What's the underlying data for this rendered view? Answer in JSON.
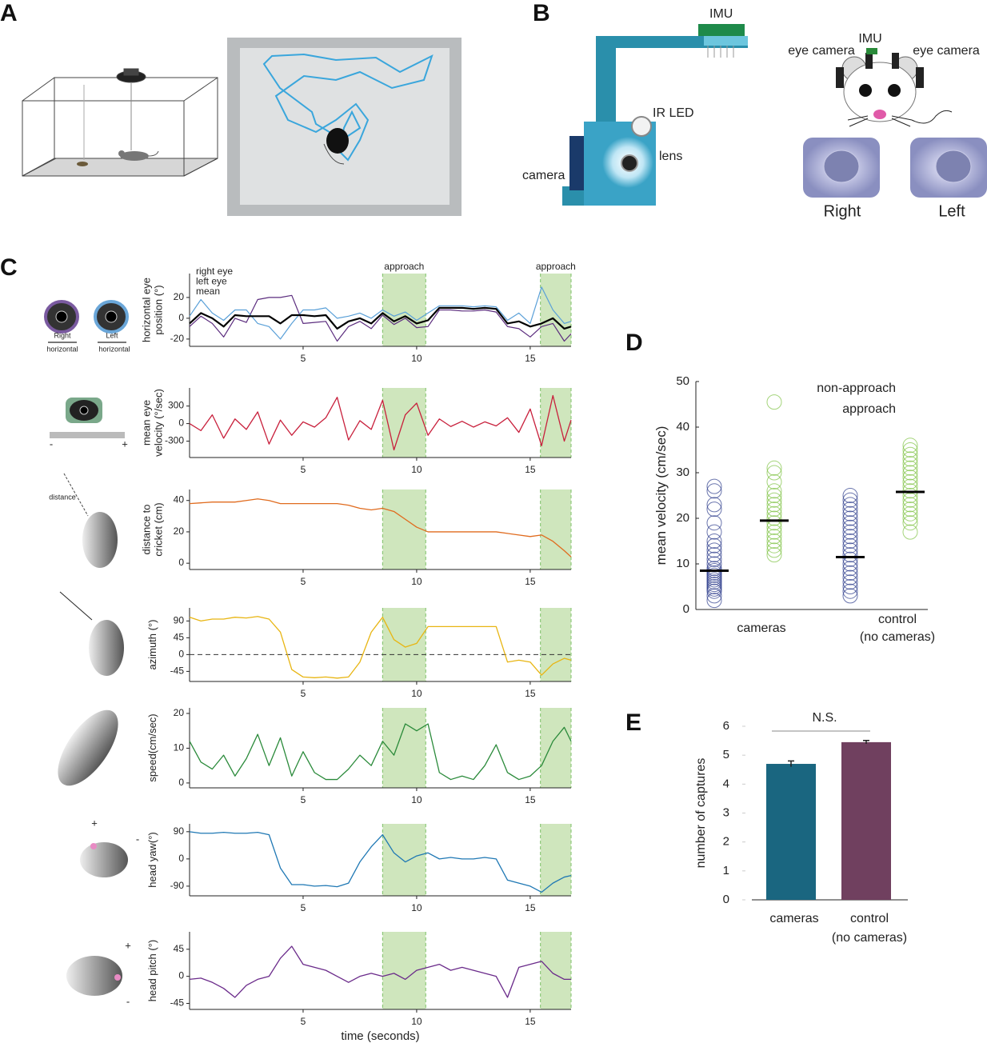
{
  "panel_labels": [
    "A",
    "B",
    "C",
    "D",
    "E"
  ],
  "panel_b": {
    "imu": "IMU",
    "ir_led": "IR LED",
    "lens": "lens",
    "camera": "camera",
    "eye_camera": "eye camera",
    "right": "Right",
    "left": "Left"
  },
  "panel_c_icons": {
    "right": "Right",
    "left": "Left",
    "horizontal": "horizontal",
    "plus": "+",
    "minus": "-",
    "distance": "distance"
  },
  "chart_data": [
    {
      "type": "line",
      "ylabel": "horizontal eye\nposition (°)",
      "x": [
        0,
        0.5,
        1,
        1.5,
        2,
        2.5,
        3,
        3.5,
        4,
        4.5,
        5,
        5.5,
        6,
        6.5,
        7,
        7.5,
        8,
        8.5,
        9,
        9.5,
        10,
        10.5,
        11,
        11.5,
        12,
        12.5,
        13,
        13.5,
        14,
        14.5,
        15,
        15.5,
        16,
        16.5,
        16.8
      ],
      "xlim": [
        0,
        16.8
      ],
      "xticks": [
        5,
        10,
        15
      ],
      "ylim": [
        -27,
        43
      ],
      "yticks": [
        20,
        0,
        -20
      ],
      "regions": [
        {
          "start": 8.5,
          "end": 10.4,
          "label": "approach"
        },
        {
          "start": 15.45,
          "end": 16.8,
          "label": "approach"
        }
      ],
      "series": [
        {
          "name": "right eye",
          "color": "#5b2c7e",
          "values": [
            -8,
            2,
            -5,
            -18,
            0,
            -4,
            18,
            20,
            20,
            22,
            -5,
            -4,
            -3,
            -22,
            -8,
            -3,
            -10,
            3,
            -6,
            0,
            -9,
            -8,
            8,
            8,
            7,
            7,
            8,
            6,
            -8,
            -10,
            -18,
            -8,
            -5,
            -22,
            -15
          ]
        },
        {
          "name": "left eye",
          "color": "#5aa0d8",
          "values": [
            2,
            18,
            5,
            -2,
            8,
            8,
            -5,
            -8,
            -20,
            -5,
            8,
            8,
            10,
            0,
            2,
            5,
            0,
            8,
            2,
            6,
            -2,
            5,
            12,
            12,
            12,
            11,
            12,
            11,
            -2,
            5,
            -5,
            30,
            8,
            -5,
            -3
          ]
        },
        {
          "name": "mean",
          "color": "#000000",
          "values": [
            -5,
            5,
            0,
            -8,
            3,
            2,
            2,
            2,
            -5,
            3,
            3,
            2,
            3,
            -10,
            -3,
            0,
            -5,
            5,
            -3,
            2,
            -5,
            -2,
            10,
            10,
            10,
            9,
            10,
            9,
            -5,
            -3,
            -8,
            -5,
            0,
            -10,
            -8
          ]
        }
      ]
    },
    {
      "type": "line",
      "ylabel": "mean eye\nvelocity  (°/sec)",
      "x": [
        0,
        0.5,
        1,
        1.5,
        2,
        2.5,
        3,
        3.5,
        4,
        4.5,
        5,
        5.5,
        6,
        6.5,
        7,
        7.5,
        8,
        8.5,
        9,
        9.5,
        10,
        10.5,
        11,
        11.5,
        12,
        12.5,
        13,
        13.5,
        14,
        14.5,
        15,
        15.5,
        16,
        16.5,
        16.8
      ],
      "xlim": [
        0,
        16.8
      ],
      "xticks": [
        5,
        10,
        15
      ],
      "ylim": [
        -580,
        610
      ],
      "yticks": [
        300,
        0,
        -300
      ],
      "regions": [
        {
          "start": 8.5,
          "end": 10.4
        },
        {
          "start": 15.45,
          "end": 16.8
        }
      ],
      "color": "#c8203c",
      "values": [
        0,
        -120,
        150,
        -250,
        80,
        -100,
        200,
        -350,
        60,
        -200,
        30,
        -60,
        100,
        450,
        -280,
        50,
        -100,
        400,
        -450,
        150,
        350,
        -200,
        80,
        -50,
        40,
        -60,
        30,
        -40,
        100,
        -150,
        250,
        -380,
        480,
        -300,
        60
      ]
    },
    {
      "type": "line",
      "ylabel": "distance to\ncricket (cm)",
      "x": [
        0,
        0.5,
        1,
        1.5,
        2,
        2.5,
        3,
        3.5,
        4,
        4.5,
        5,
        5.5,
        6,
        6.5,
        7,
        7.5,
        8,
        8.5,
        9,
        9.5,
        10,
        10.5,
        11,
        11.5,
        12,
        12.5,
        13,
        13.5,
        14,
        14.5,
        15,
        15.5,
        16,
        16.5,
        16.8
      ],
      "xlim": [
        0,
        16.8
      ],
      "xticks": [
        5,
        10,
        15
      ],
      "ylim": [
        -4,
        47
      ],
      "yticks": [
        40,
        20,
        0
      ],
      "regions": [
        {
          "start": 8.5,
          "end": 10.4
        },
        {
          "start": 15.45,
          "end": 16.8
        }
      ],
      "color": "#e06b1e",
      "values": [
        38,
        38.5,
        39,
        39,
        39,
        40,
        41,
        40,
        38,
        38,
        38,
        38,
        38,
        38,
        37,
        35,
        34,
        35,
        33,
        28,
        23,
        20,
        20,
        20,
        20,
        20,
        20,
        20,
        19,
        18,
        17,
        18,
        14,
        8,
        4
      ]
    },
    {
      "type": "line",
      "ylabel": "azimuth (°)",
      "x": [
        0,
        0.5,
        1,
        1.5,
        2,
        2.5,
        3,
        3.5,
        4,
        4.5,
        5,
        5.5,
        6,
        6.5,
        7,
        7.5,
        8,
        8.5,
        9,
        9.5,
        10,
        10.5,
        11,
        11.5,
        12,
        12.5,
        13,
        13.5,
        14,
        14.5,
        15,
        15.5,
        16,
        16.5,
        16.8
      ],
      "xlim": [
        0,
        16.8
      ],
      "xticks": [
        5,
        10,
        15
      ],
      "ylim": [
        -72,
        125
      ],
      "yticks": [
        90,
        45,
        0,
        -45
      ],
      "hline": 0,
      "regions": [
        {
          "start": 8.5,
          "end": 10.4
        },
        {
          "start": 15.45,
          "end": 16.8
        }
      ],
      "color": "#e8b512",
      "values": [
        100,
        90,
        95,
        95,
        100,
        98,
        102,
        95,
        60,
        -40,
        -60,
        -62,
        -60,
        -63,
        -60,
        -20,
        60,
        100,
        40,
        20,
        30,
        75,
        75,
        75,
        75,
        75,
        75,
        75,
        -20,
        -15,
        -20,
        -55,
        -25,
        -10,
        -15
      ]
    },
    {
      "type": "line",
      "ylabel": "speed(cm/sec)",
      "x": [
        0,
        0.5,
        1,
        1.5,
        2,
        2.5,
        3,
        3.5,
        4,
        4.5,
        5,
        5.5,
        6,
        6.5,
        7,
        7.5,
        8,
        8.5,
        9,
        9.5,
        10,
        10.5,
        11,
        11.5,
        12,
        12.5,
        13,
        13.5,
        14,
        14.5,
        15,
        15.5,
        16,
        16.5,
        16.8
      ],
      "xlim": [
        0,
        16.8
      ],
      "xticks": [
        5,
        10,
        15
      ],
      "ylim": [
        -1.4,
        21.6
      ],
      "yticks": [
        20,
        10,
        0
      ],
      "regions": [
        {
          "start": 8.5,
          "end": 10.4
        },
        {
          "start": 15.45,
          "end": 16.8
        }
      ],
      "color": "#2a8a3a",
      "values": [
        12,
        6,
        4,
        8,
        2,
        7,
        14,
        5,
        13,
        2,
        9,
        3,
        1,
        1,
        4,
        8,
        5,
        12,
        8,
        17,
        15,
        17,
        3,
        1,
        2,
        1,
        5,
        11,
        3,
        1,
        2,
        5,
        12,
        16,
        12
      ]
    },
    {
      "type": "line",
      "ylabel": "head yaw(°)",
      "x": [
        0,
        0.5,
        1,
        1.5,
        2,
        2.5,
        3,
        3.5,
        4,
        4.5,
        5,
        5.5,
        6,
        6.5,
        7,
        7.5,
        8,
        8.5,
        9,
        9.5,
        10,
        10.5,
        11,
        11.5,
        12,
        12.5,
        13,
        13.5,
        14,
        14.5,
        15,
        15.5,
        16,
        16.5,
        16.8
      ],
      "xlim": [
        0,
        16.8
      ],
      "xticks": [
        5,
        10,
        15
      ],
      "ylim": [
        -122,
        116
      ],
      "yticks": [
        90,
        0,
        -90
      ],
      "regions": [
        {
          "start": 8.5,
          "end": 10.4
        },
        {
          "start": 15.45,
          "end": 16.8
        }
      ],
      "color": "#1f78b4",
      "values": [
        90,
        85,
        85,
        88,
        85,
        85,
        88,
        80,
        -30,
        -85,
        -85,
        -90,
        -88,
        -92,
        -80,
        -10,
        40,
        80,
        20,
        -10,
        10,
        20,
        0,
        5,
        0,
        0,
        5,
        0,
        -70,
        -80,
        -90,
        -110,
        -80,
        -60,
        -55
      ]
    },
    {
      "type": "line",
      "ylabel": "head pitch (°)",
      "xlabel": "time (seconds)",
      "x": [
        0,
        0.5,
        1,
        1.5,
        2,
        2.5,
        3,
        3.5,
        4,
        4.5,
        5,
        5.5,
        6,
        6.5,
        7,
        7.5,
        8,
        8.5,
        9,
        9.5,
        10,
        10.5,
        11,
        11.5,
        12,
        12.5,
        13,
        13.5,
        14,
        14.5,
        15,
        15.5,
        16,
        16.5,
        16.8
      ],
      "xlim": [
        0,
        16.8
      ],
      "xticks": [
        5,
        10,
        15
      ],
      "ylim": [
        -55,
        74
      ],
      "yticks": [
        45,
        0,
        -45
      ],
      "regions": [
        {
          "start": 8.5,
          "end": 10.4
        },
        {
          "start": 15.45,
          "end": 16.8
        }
      ],
      "color": "#6a2a8a",
      "values": [
        -5,
        -3,
        -10,
        -20,
        -35,
        -15,
        -5,
        0,
        30,
        50,
        20,
        15,
        10,
        0,
        -10,
        0,
        5,
        0,
        5,
        -5,
        10,
        15,
        20,
        10,
        15,
        10,
        5,
        0,
        -35,
        15,
        20,
        25,
        5,
        -5,
        -5
      ]
    },
    {
      "type": "strip",
      "ylabel": "mean velocity (cm/sec)",
      "categories": [
        "cameras",
        "control\n(no cameras)"
      ],
      "ylim": [
        0,
        50
      ],
      "yticks": [
        0,
        10,
        20,
        30,
        40,
        50
      ],
      "series": [
        {
          "name": "non-approach",
          "color": "#2b3a8a",
          "values": [
            [
              2,
              3,
              4,
              4.5,
              5,
              5.5,
              6,
              6.5,
              7,
              7.5,
              8,
              8.5,
              9,
              10,
              11,
              12,
              13,
              14,
              15,
              17,
              19,
              22,
              23,
              26,
              27
            ],
            [
              3,
              4,
              5,
              6,
              7,
              8,
              9,
              10,
              11,
              12,
              13,
              14,
              15,
              16,
              17,
              18,
              19,
              20,
              21,
              22,
              23,
              24,
              25
            ]
          ],
          "means": [
            8.5,
            11.5
          ]
        },
        {
          "name": "approach",
          "color": "#7dc242",
          "values": [
            [
              12,
              13,
              14,
              15,
              16,
              17,
              18,
              19,
              20,
              21,
              22,
              23,
              24,
              25,
              26,
              28,
              30,
              31,
              45.5
            ],
            [
              17,
              19,
              20,
              21,
              22,
              23,
              24,
              25,
              26,
              27,
              28,
              29,
              30,
              31,
              32,
              33,
              34,
              35,
              36
            ]
          ],
          "means": [
            19.5,
            25.8
          ]
        }
      ]
    },
    {
      "type": "bar",
      "ylabel": "number of captures",
      "categories": [
        "cameras",
        "control\n(no cameras)"
      ],
      "values": [
        4.7,
        5.45
      ],
      "errors": [
        0.1,
        0.06
      ],
      "colors": [
        "#1a6680",
        "#70405f"
      ],
      "ylim": [
        0,
        6
      ],
      "yticks": [
        0,
        1,
        2,
        3,
        4,
        5,
        6
      ],
      "annotation": "N.S."
    }
  ]
}
